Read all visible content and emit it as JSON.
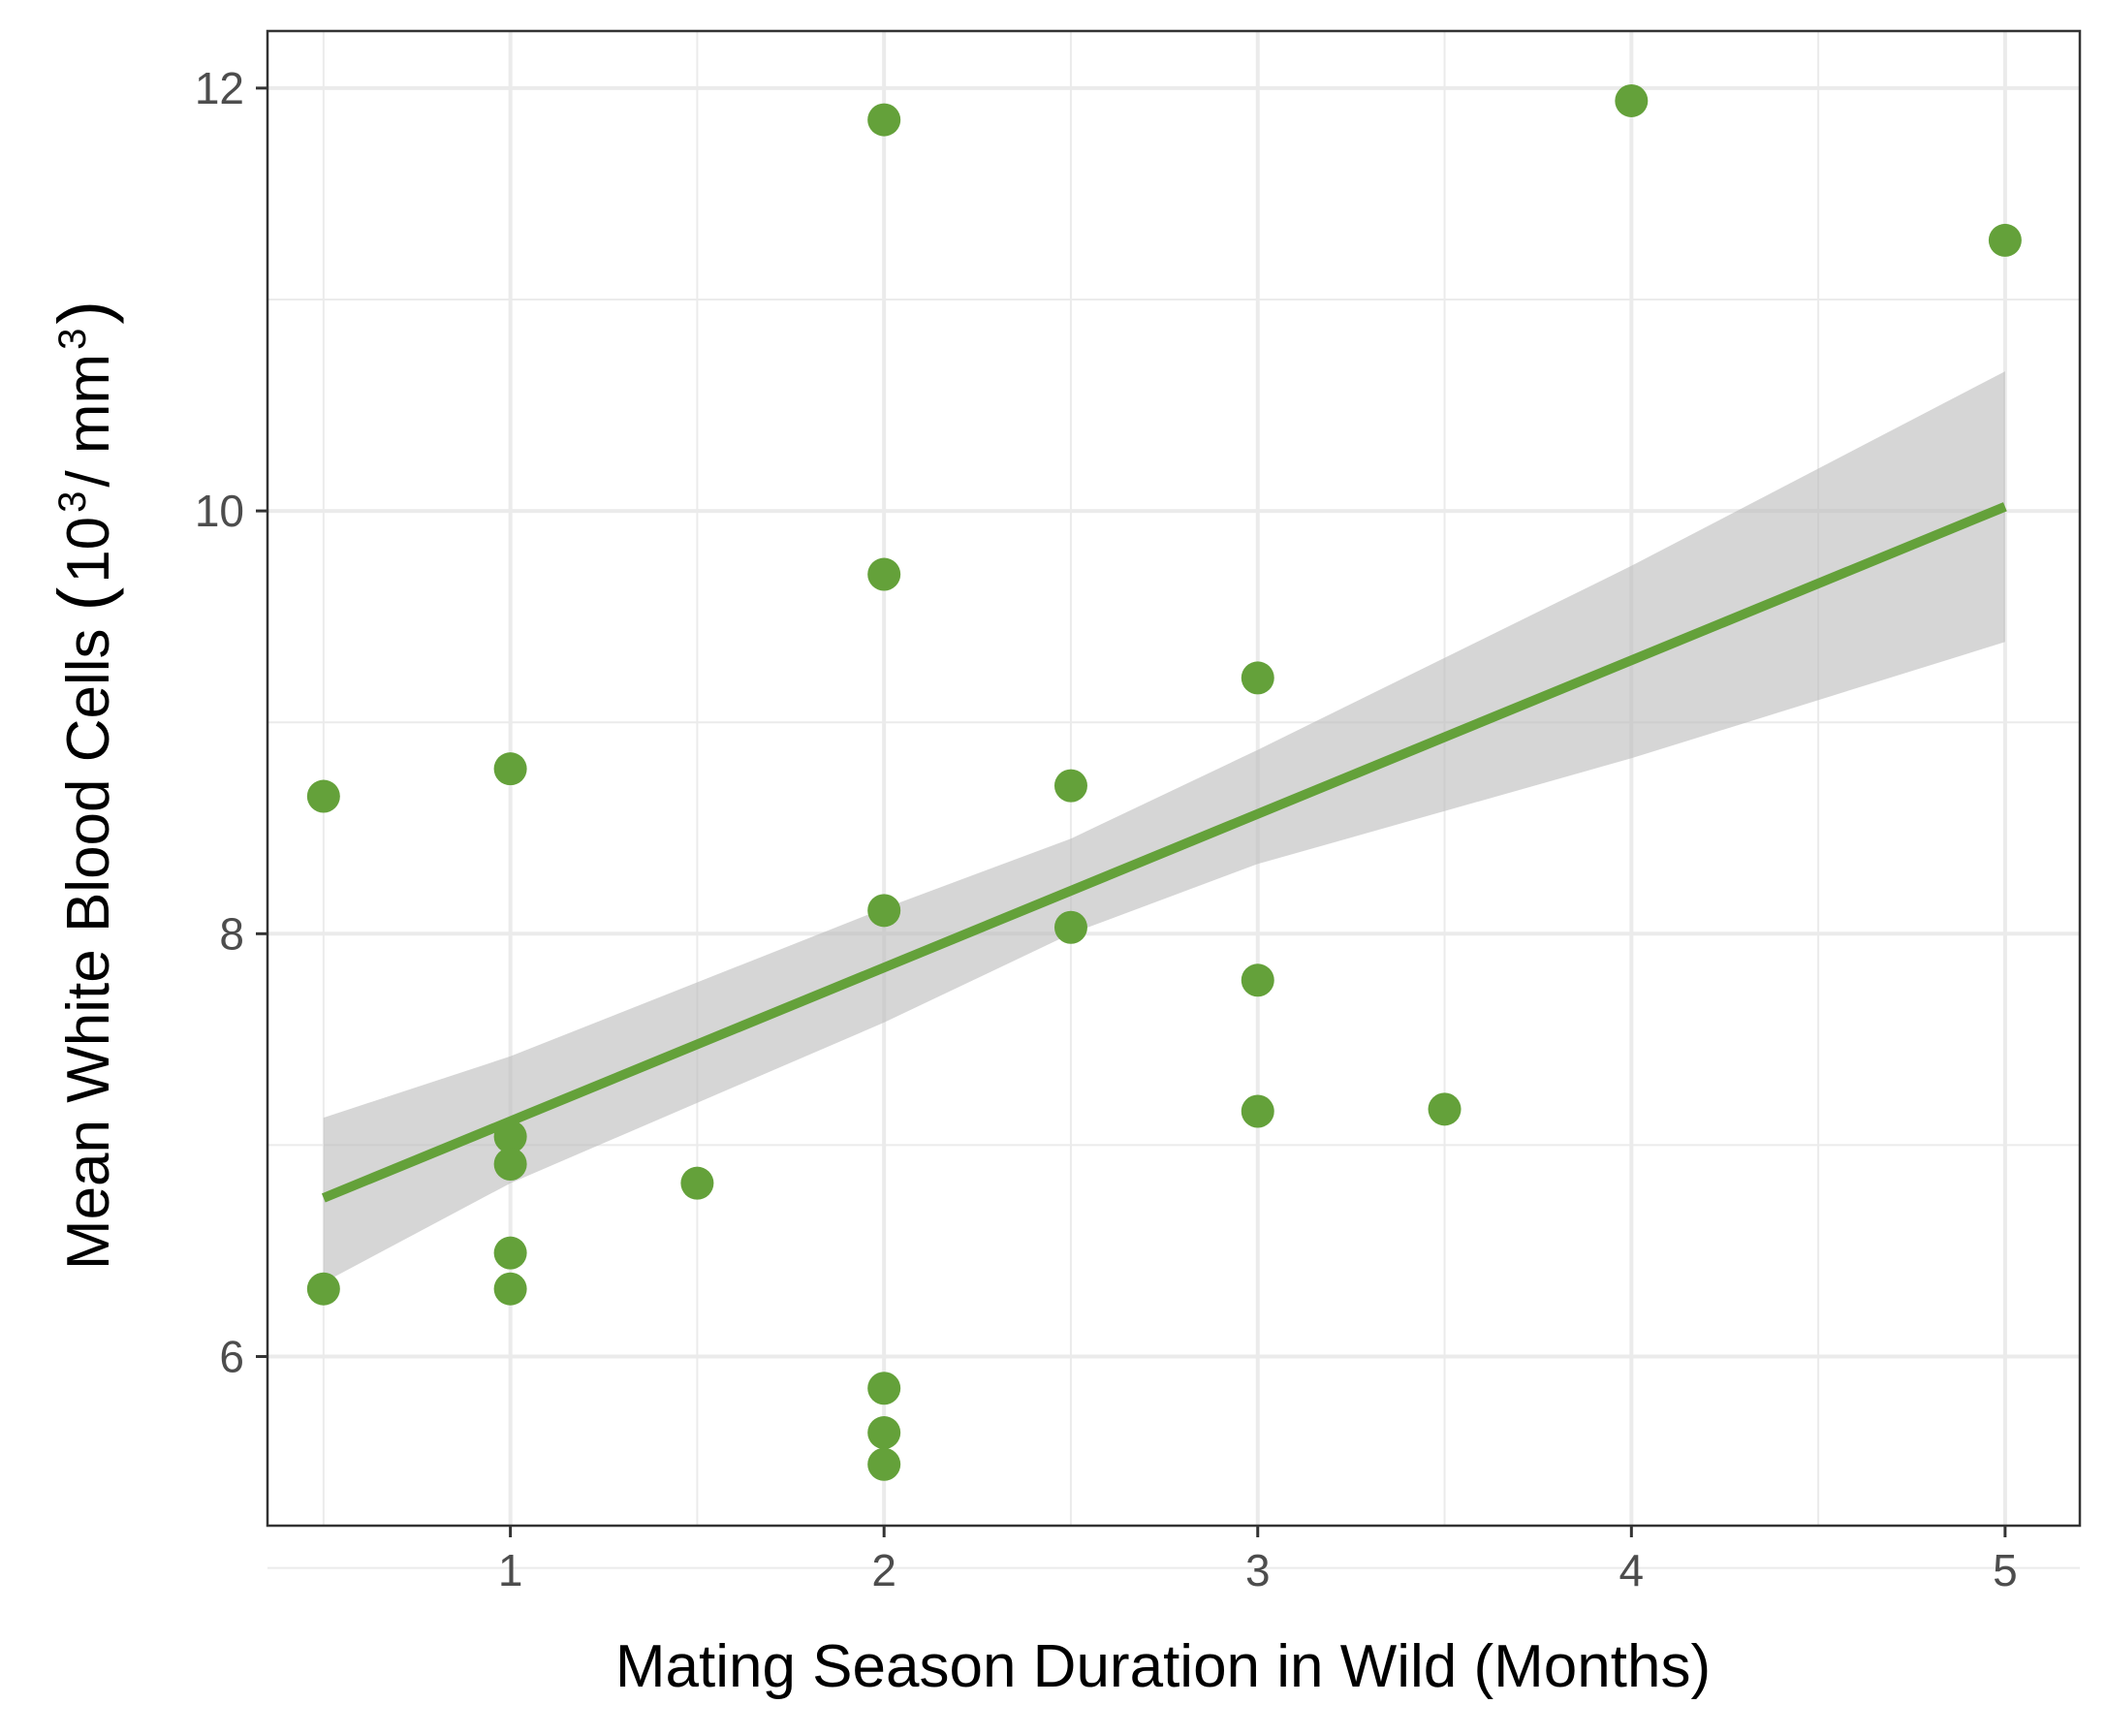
{
  "chart_data": {
    "type": "scatter",
    "xlabel": "Mating Season Duration in Wild (Months)",
    "ylabel": {
      "main": "Mean White Blood Cells",
      "open_paren": "(",
      "base1": "10",
      "sup1": "3",
      "sep": " / mm",
      "sup2": "3",
      "close_paren": ")"
    },
    "xlim": [
      0.35,
      5.2
    ],
    "ylim": [
      5.2,
      12.27
    ],
    "x_ticks": [
      1,
      2,
      3,
      4,
      5
    ],
    "x_tick_labels": [
      "1",
      "2",
      "3",
      "4",
      "5"
    ],
    "x_minor_ticks": [
      0.5,
      1.5,
      2.5,
      3.5,
      4.5
    ],
    "y_ticks": [
      6,
      8,
      10,
      12
    ],
    "y_tick_labels": [
      "6",
      "8",
      "10",
      "12"
    ],
    "y_minor_ticks": [
      5,
      7,
      9,
      11
    ],
    "grid": true,
    "point_color": "#64a13a",
    "line_color": "#64a13a",
    "ribbon_color": "#bdbdbd",
    "points": [
      {
        "x": 0.5,
        "y": 8.65
      },
      {
        "x": 0.5,
        "y": 6.32
      },
      {
        "x": 1,
        "y": 8.78
      },
      {
        "x": 1,
        "y": 7.04
      },
      {
        "x": 1,
        "y": 6.91
      },
      {
        "x": 1,
        "y": 6.49
      },
      {
        "x": 1,
        "y": 6.32
      },
      {
        "x": 1.5,
        "y": 6.82
      },
      {
        "x": 2,
        "y": 11.85
      },
      {
        "x": 2,
        "y": 9.7
      },
      {
        "x": 2,
        "y": 8.11
      },
      {
        "x": 2,
        "y": 5.85
      },
      {
        "x": 2,
        "y": 5.64
      },
      {
        "x": 2,
        "y": 5.49
      },
      {
        "x": 2.5,
        "y": 8.7
      },
      {
        "x": 2.5,
        "y": 8.03
      },
      {
        "x": 3,
        "y": 9.21
      },
      {
        "x": 3,
        "y": 7.78
      },
      {
        "x": 3,
        "y": 7.16
      },
      {
        "x": 3.5,
        "y": 7.17
      },
      {
        "x": 4,
        "y": 11.94
      },
      {
        "x": 5,
        "y": 11.28
      }
    ],
    "fit_line": {
      "x": [
        0.5,
        5
      ],
      "y": [
        6.75,
        10.02
      ]
    },
    "confidence_band": {
      "x": [
        0.5,
        1,
        2,
        2.5,
        3,
        4,
        5
      ],
      "upper": [
        7.13,
        7.42,
        8.12,
        8.45,
        8.87,
        9.74,
        10.66
      ],
      "lower": [
        6.35,
        6.82,
        7.58,
        8.0,
        8.33,
        8.83,
        9.38
      ]
    }
  }
}
